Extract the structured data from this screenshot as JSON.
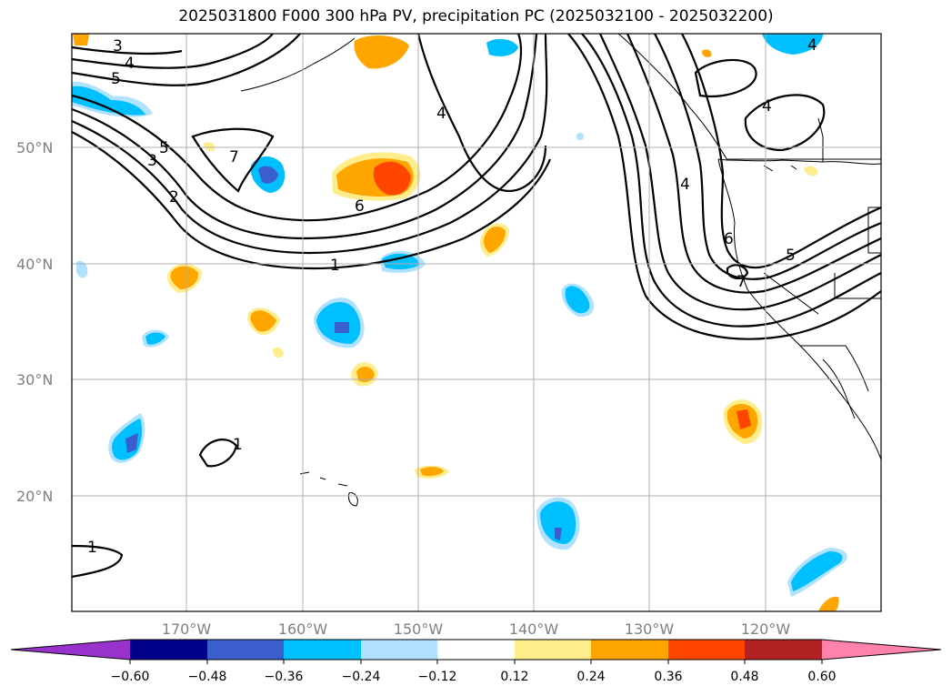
{
  "title": "2025031800 F000 300 hPa PV, precipitation PC (2025032100 - 2025032200)",
  "lat_labels": [
    "50°N",
    "40°N",
    "30°N",
    "20°N"
  ],
  "lon_labels": [
    "170°W",
    "160°W",
    "150°W",
    "140°W",
    "130°W",
    "120°W"
  ],
  "colorbar": {
    "ticks": [
      "−0.60",
      "−0.48",
      "−0.36",
      "−0.24",
      "−0.12",
      "0.12",
      "0.24",
      "0.36",
      "0.48",
      "0.60"
    ],
    "colors": [
      "#9932CC",
      "#00008B",
      "#3A5FCD",
      "#00BFFF",
      "#B0E2FF",
      "#FFFFFF",
      "#FFEC8B",
      "#FFA500",
      "#FF4500",
      "#B22222",
      "#FF82AB"
    ]
  },
  "contour_labels": [
    "3",
    "4",
    "5",
    "5",
    "3",
    "2",
    "7",
    "6",
    "4",
    "1",
    "4",
    "6",
    "5",
    "7",
    "4",
    "1",
    "1",
    "4"
  ]
}
